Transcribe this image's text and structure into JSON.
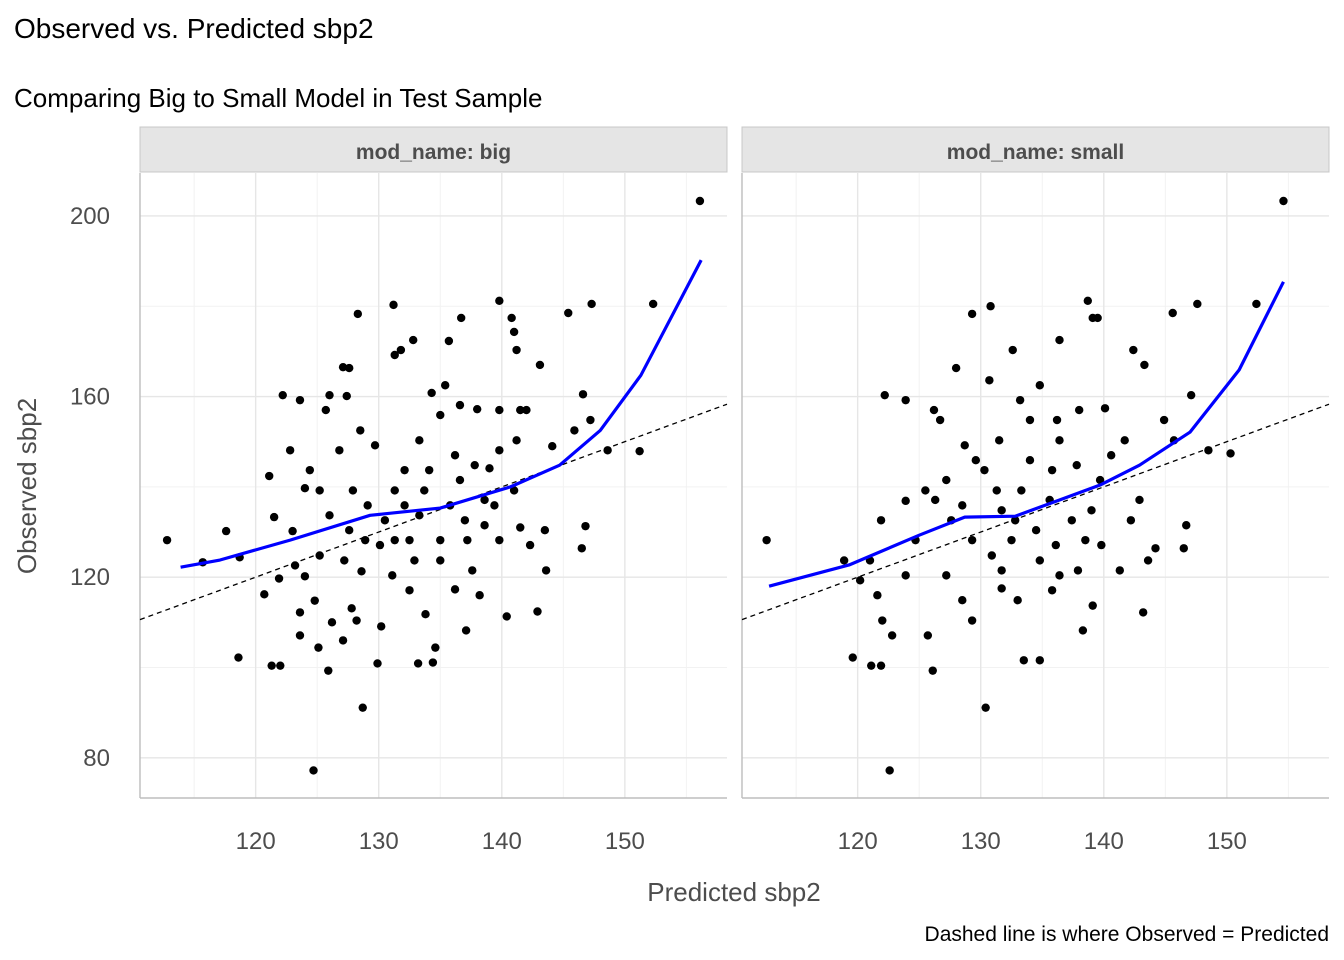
{
  "chart_data": {
    "type": "scatter",
    "title": "Observed vs. Predicted sbp2",
    "subtitle": "Comparing Big to Small Model in Test Sample",
    "xlabel": "Predicted sbp2",
    "ylabel": "Observed sbp2",
    "caption": "Dashed line is where Observed = Predicted",
    "xlim": [
      110.6,
      158.3
    ],
    "ylim": [
      71.1,
      209.5
    ],
    "x_ticks": [
      120,
      130,
      140,
      150
    ],
    "x_tick_labels": [
      "120",
      "130",
      "140",
      "150"
    ],
    "y_ticks": [
      80,
      120,
      160,
      200
    ],
    "y_tick_labels": [
      "80",
      "120",
      "160",
      "200"
    ],
    "grid": true,
    "colors": {
      "points": "#000000",
      "smooth": "#0000ff",
      "reference": "#000000",
      "strip": "#e5e5e5"
    },
    "panels": [
      {
        "strip_label": "mod_name: big",
        "smooth": [
          [
            113.9,
            122.2
          ],
          [
            117.1,
            123.8
          ],
          [
            122.8,
            128.2
          ],
          [
            129.3,
            133.7
          ],
          [
            135,
            135.3
          ],
          [
            140.7,
            140
          ],
          [
            144.7,
            144.8
          ],
          [
            148,
            152.5
          ],
          [
            151.3,
            164.7
          ],
          [
            156.2,
            190.2
          ]
        ],
        "points": [
          [
            156.1,
            203.3
          ],
          [
            124.7,
            77.2
          ],
          [
            128.7,
            91.1
          ],
          [
            118.6,
            102.2
          ],
          [
            121.3,
            100.4
          ],
          [
            122,
            100.4
          ],
          [
            112.8,
            128.2
          ],
          [
            115.7,
            123.3
          ],
          [
            117.6,
            130.2
          ],
          [
            118.7,
            124.4
          ],
          [
            152.3,
            180.5
          ],
          [
            147.3,
            180.5
          ],
          [
            145.4,
            178.5
          ],
          [
            146.6,
            160.5
          ],
          [
            151.2,
            147.9
          ],
          [
            148.6,
            148.1
          ],
          [
            147.2,
            154.8
          ],
          [
            146.8,
            131.3
          ],
          [
            146.5,
            126.4
          ],
          [
            143.6,
            121.5
          ],
          [
            142.9,
            112.4
          ],
          [
            140.4,
            111.3
          ],
          [
            139.8,
            181.2
          ],
          [
            140.8,
            177.4
          ],
          [
            141,
            174.3
          ],
          [
            141.2,
            170.3
          ],
          [
            136.7,
            177.4
          ],
          [
            135.7,
            172.3
          ],
          [
            132.8,
            172.5
          ],
          [
            131.8,
            170.3
          ],
          [
            131.3,
            169.2
          ],
          [
            128.3,
            178.3
          ],
          [
            131.2,
            180.3
          ],
          [
            127.6,
            166.3
          ],
          [
            127.1,
            166.5
          ],
          [
            122.2,
            160.3
          ],
          [
            123.6,
            159.2
          ],
          [
            126,
            160.3
          ],
          [
            125.7,
            157
          ],
          [
            127.4,
            160.1
          ],
          [
            121.1,
            142.4
          ],
          [
            121.5,
            133.3
          ],
          [
            123,
            130.2
          ],
          [
            123.2,
            122.6
          ],
          [
            124,
            120.2
          ],
          [
            120.7,
            116.2
          ],
          [
            121.9,
            119.7
          ],
          [
            123.6,
            112.2
          ],
          [
            123.6,
            107.1
          ],
          [
            125.1,
            104.4
          ],
          [
            125.9,
            99.3
          ],
          [
            127.1,
            106
          ],
          [
            126.2,
            110
          ],
          [
            127.8,
            113.1
          ],
          [
            128.2,
            110.4
          ],
          [
            129.9,
            100.9
          ],
          [
            130.2,
            109.1
          ],
          [
            133.2,
            100.9
          ],
          [
            134.4,
            101.1
          ],
          [
            134.6,
            104.4
          ],
          [
            133.8,
            111.8
          ],
          [
            137.1,
            108.2
          ],
          [
            138.2,
            116
          ],
          [
            137.6,
            121.5
          ],
          [
            136.2,
            117.3
          ],
          [
            132.5,
            117.1
          ],
          [
            131.1,
            120.4
          ],
          [
            128.6,
            121.3
          ],
          [
            130.1,
            127.1
          ],
          [
            130.5,
            132.6
          ],
          [
            131.3,
            139.2
          ],
          [
            132.1,
            143.7
          ],
          [
            133.3,
            150.3
          ],
          [
            135,
            155.9
          ],
          [
            135.4,
            162.5
          ],
          [
            134.3,
            160.8
          ],
          [
            136.6,
            158.1
          ],
          [
            138,
            157.2
          ],
          [
            139.8,
            157
          ],
          [
            141.5,
            157
          ],
          [
            142,
            157
          ],
          [
            143.1,
            167
          ],
          [
            141.2,
            150.3
          ],
          [
            139.8,
            148.1
          ],
          [
            139,
            144.1
          ],
          [
            137.8,
            144.8
          ],
          [
            136.6,
            141.5
          ],
          [
            135.8,
            135.9
          ],
          [
            137,
            132.6
          ],
          [
            138.6,
            131.5
          ],
          [
            139.8,
            128.2
          ],
          [
            141.5,
            131
          ],
          [
            142.3,
            127.1
          ],
          [
            143.5,
            130.4
          ],
          [
            139.4,
            135.9
          ],
          [
            141,
            139.2
          ],
          [
            135,
            128.2
          ],
          [
            133.3,
            133.7
          ],
          [
            132.5,
            128.2
          ],
          [
            127.6,
            130.4
          ],
          [
            126,
            133.7
          ],
          [
            125.2,
            139.2
          ],
          [
            124.4,
            143.7
          ],
          [
            126.8,
            148.1
          ],
          [
            128.5,
            152.5
          ],
          [
            129.7,
            149.2
          ],
          [
            124.8,
            114.8
          ],
          [
            127.2,
            123.7
          ],
          [
            128.9,
            128.2
          ],
          [
            132.9,
            123.7
          ],
          [
            135,
            123.7
          ],
          [
            137.2,
            128.2
          ],
          [
            138.6,
            137.1
          ],
          [
            144.1,
            149
          ],
          [
            145.9,
            152.5
          ],
          [
            122.8,
            148.1
          ],
          [
            124,
            139.7
          ],
          [
            125.2,
            124.8
          ],
          [
            131.3,
            128.2
          ],
          [
            134.1,
            143.7
          ],
          [
            136.2,
            147
          ],
          [
            133.7,
            139.2
          ],
          [
            132.1,
            135.9
          ],
          [
            129.1,
            135.9
          ],
          [
            127.9,
            139.2
          ]
        ]
      },
      {
        "strip_label": "mod_name: small",
        "smooth": [
          [
            112.8,
            118
          ],
          [
            119.3,
            122.7
          ],
          [
            125,
            129.3
          ],
          [
            128.7,
            133.3
          ],
          [
            132.8,
            133.5
          ],
          [
            136.4,
            137.1
          ],
          [
            139.7,
            140.4
          ],
          [
            142.9,
            144.8
          ],
          [
            147,
            152.1
          ],
          [
            151,
            165.9
          ],
          [
            154.6,
            185.4
          ]
        ],
        "points": [
          [
            154.6,
            203.3
          ],
          [
            122.6,
            77.2
          ],
          [
            130.4,
            91.1
          ],
          [
            119.6,
            102.2
          ],
          [
            121.1,
            100.4
          ],
          [
            121.9,
            100.4
          ],
          [
            112.6,
            128.2
          ],
          [
            126.1,
            99.3
          ],
          [
            152.4,
            180.5
          ],
          [
            147.6,
            180.5
          ],
          [
            145.6,
            178.5
          ],
          [
            150.3,
            147.4
          ],
          [
            148.5,
            148.1
          ],
          [
            147.1,
            160.3
          ],
          [
            146.7,
            131.5
          ],
          [
            146.5,
            126.4
          ],
          [
            143.2,
            112.2
          ],
          [
            138.7,
            181.2
          ],
          [
            139.1,
            177.4
          ],
          [
            139.5,
            177.4
          ],
          [
            136.4,
            172.5
          ],
          [
            132.6,
            170.3
          ],
          [
            130.8,
            180
          ],
          [
            129.3,
            178.3
          ],
          [
            130.7,
            163.6
          ],
          [
            128,
            166.3
          ],
          [
            122.2,
            160.3
          ],
          [
            123.9,
            159.2
          ],
          [
            126.2,
            157
          ],
          [
            142.4,
            170.3
          ],
          [
            143.3,
            167
          ],
          [
            133.5,
            101.6
          ],
          [
            134.8,
            101.6
          ],
          [
            138.3,
            108.2
          ],
          [
            139.1,
            113.7
          ],
          [
            122,
            110.4
          ],
          [
            121.6,
            116
          ],
          [
            120.2,
            119.3
          ],
          [
            122.8,
            107.1
          ],
          [
            125.7,
            107.1
          ],
          [
            129.3,
            110.4
          ],
          [
            131.7,
            117.5
          ],
          [
            133,
            114.9
          ],
          [
            135.8,
            117.1
          ],
          [
            137.9,
            121.5
          ],
          [
            143.6,
            123.7
          ],
          [
            144.2,
            126.4
          ],
          [
            142.2,
            132.6
          ],
          [
            139.8,
            127.1
          ],
          [
            141.7,
            150.3
          ],
          [
            140.1,
            157.4
          ],
          [
            138,
            157
          ],
          [
            136.2,
            154.8
          ],
          [
            134,
            154.8
          ],
          [
            134.8,
            162.5
          ],
          [
            133.2,
            159.2
          ],
          [
            131.5,
            150.3
          ],
          [
            129.6,
            145.9
          ],
          [
            127.2,
            141.5
          ],
          [
            125.5,
            139.2
          ],
          [
            123.9,
            136.9
          ],
          [
            121.9,
            132.6
          ],
          [
            127.6,
            132.6
          ],
          [
            129.3,
            128.2
          ],
          [
            130.9,
            124.8
          ],
          [
            132.5,
            128.2
          ],
          [
            134.5,
            130.4
          ],
          [
            136.1,
            127.1
          ],
          [
            137.4,
            132.6
          ],
          [
            139,
            134.8
          ],
          [
            139.7,
            141.5
          ],
          [
            137.8,
            144.8
          ],
          [
            135.8,
            143.7
          ],
          [
            133.3,
            139.2
          ],
          [
            131.3,
            139.2
          ],
          [
            131.7,
            134.8
          ],
          [
            128.5,
            135.9
          ],
          [
            126.3,
            137.1
          ],
          [
            124.7,
            128.2
          ],
          [
            123.9,
            120.4
          ],
          [
            127.2,
            120.4
          ],
          [
            128.5,
            114.9
          ],
          [
            131.7,
            121.5
          ],
          [
            134.8,
            123.7
          ],
          [
            136.4,
            120.4
          ],
          [
            141.3,
            121.5
          ],
          [
            142.9,
            137.1
          ],
          [
            144.9,
            154.8
          ],
          [
            145.7,
            150.3
          ],
          [
            140.6,
            147
          ],
          [
            136.4,
            150.3
          ],
          [
            130.3,
            143.7
          ],
          [
            128.7,
            149.2
          ],
          [
            126.7,
            154.8
          ],
          [
            134,
            145.9
          ],
          [
            132.8,
            132.6
          ],
          [
            135.6,
            137.1
          ],
          [
            138.5,
            128.2
          ],
          [
            121,
            123.7
          ],
          [
            118.9,
            123.7
          ]
        ]
      }
    ]
  }
}
